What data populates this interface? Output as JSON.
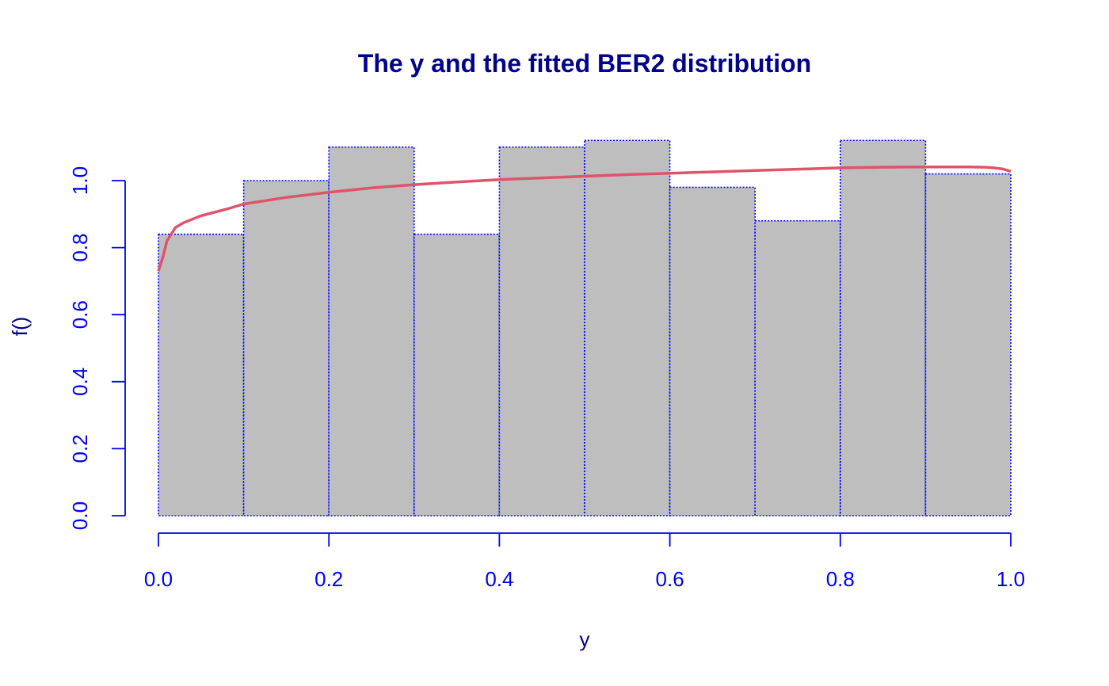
{
  "chart_data": {
    "type": "bar",
    "title": "The y and the fitted BER2 distribution",
    "xlabel": "y",
    "ylabel": "f()",
    "xlim": [
      0,
      1
    ],
    "ylim": [
      0,
      1.12
    ],
    "x_ticks": [
      "0.0",
      "0.2",
      "0.4",
      "0.6",
      "0.8",
      "1.0"
    ],
    "y_ticks": [
      "0.0",
      "0.2",
      "0.4",
      "0.6",
      "0.8",
      "1.0"
    ],
    "histogram": {
      "bins": [
        {
          "from": 0.0,
          "to": 0.1,
          "density": 0.84
        },
        {
          "from": 0.1,
          "to": 0.2,
          "density": 1.0
        },
        {
          "from": 0.2,
          "to": 0.3,
          "density": 1.1
        },
        {
          "from": 0.3,
          "to": 0.4,
          "density": 0.84
        },
        {
          "from": 0.4,
          "to": 0.5,
          "density": 1.1
        },
        {
          "from": 0.5,
          "to": 0.6,
          "density": 1.12
        },
        {
          "from": 0.6,
          "to": 0.7,
          "density": 0.98
        },
        {
          "from": 0.7,
          "to": 0.8,
          "density": 0.88
        },
        {
          "from": 0.8,
          "to": 0.9,
          "density": 1.12
        },
        {
          "from": 0.9,
          "to": 1.0,
          "density": 1.02
        }
      ]
    },
    "fitted_curve": {
      "x": [
        0.0,
        0.005,
        0.01,
        0.02,
        0.03,
        0.05,
        0.08,
        0.1,
        0.15,
        0.2,
        0.25,
        0.3,
        0.35,
        0.4,
        0.45,
        0.5,
        0.55,
        0.6,
        0.65,
        0.7,
        0.75,
        0.8,
        0.85,
        0.9,
        0.95,
        0.97,
        0.98,
        0.99,
        1.0
      ],
      "y": [
        0.73,
        0.77,
        0.82,
        0.86,
        0.875,
        0.895,
        0.915,
        0.93,
        0.95,
        0.965,
        0.978,
        0.988,
        0.996,
        1.003,
        1.008,
        1.013,
        1.018,
        1.022,
        1.026,
        1.03,
        1.034,
        1.038,
        1.04,
        1.041,
        1.041,
        1.04,
        1.038,
        1.035,
        1.028
      ]
    },
    "colors": {
      "title": "#00008b",
      "axes": "#0000ff",
      "bar_fill": "#bebebe",
      "bar_border": "#0000ff",
      "curve": "#df536b",
      "label": "#00008b"
    },
    "grid": false,
    "legend": "none"
  }
}
